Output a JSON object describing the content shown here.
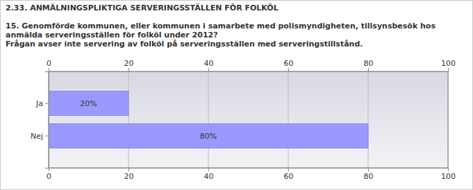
{
  "chart_data": {
    "type": "bar",
    "orientation": "horizontal",
    "title": "2.33. ANMÄLNINGSPLIKTIGA SERVERINGSSTÄLLEN FÖR FOLKÖL",
    "subtitle": "15. Genomförde kommunen, eller kommunen i samarbete med polismyndigheten, tillsynsbesök hos anmälda serveringsställen för folköl under 2012?",
    "annotations": [
      "Frågan avser inte servering av folköl på serveringsställen med serveringstillstånd."
    ],
    "categories": [
      "Ja",
      "Nej"
    ],
    "values": [
      20,
      80
    ],
    "value_labels": [
      "20%",
      "80%"
    ],
    "data_labels": true,
    "color": "#9999ff",
    "xlim": [
      0,
      100
    ],
    "xticks": [
      0,
      20,
      40,
      60,
      80,
      100
    ],
    "grid": true
  }
}
